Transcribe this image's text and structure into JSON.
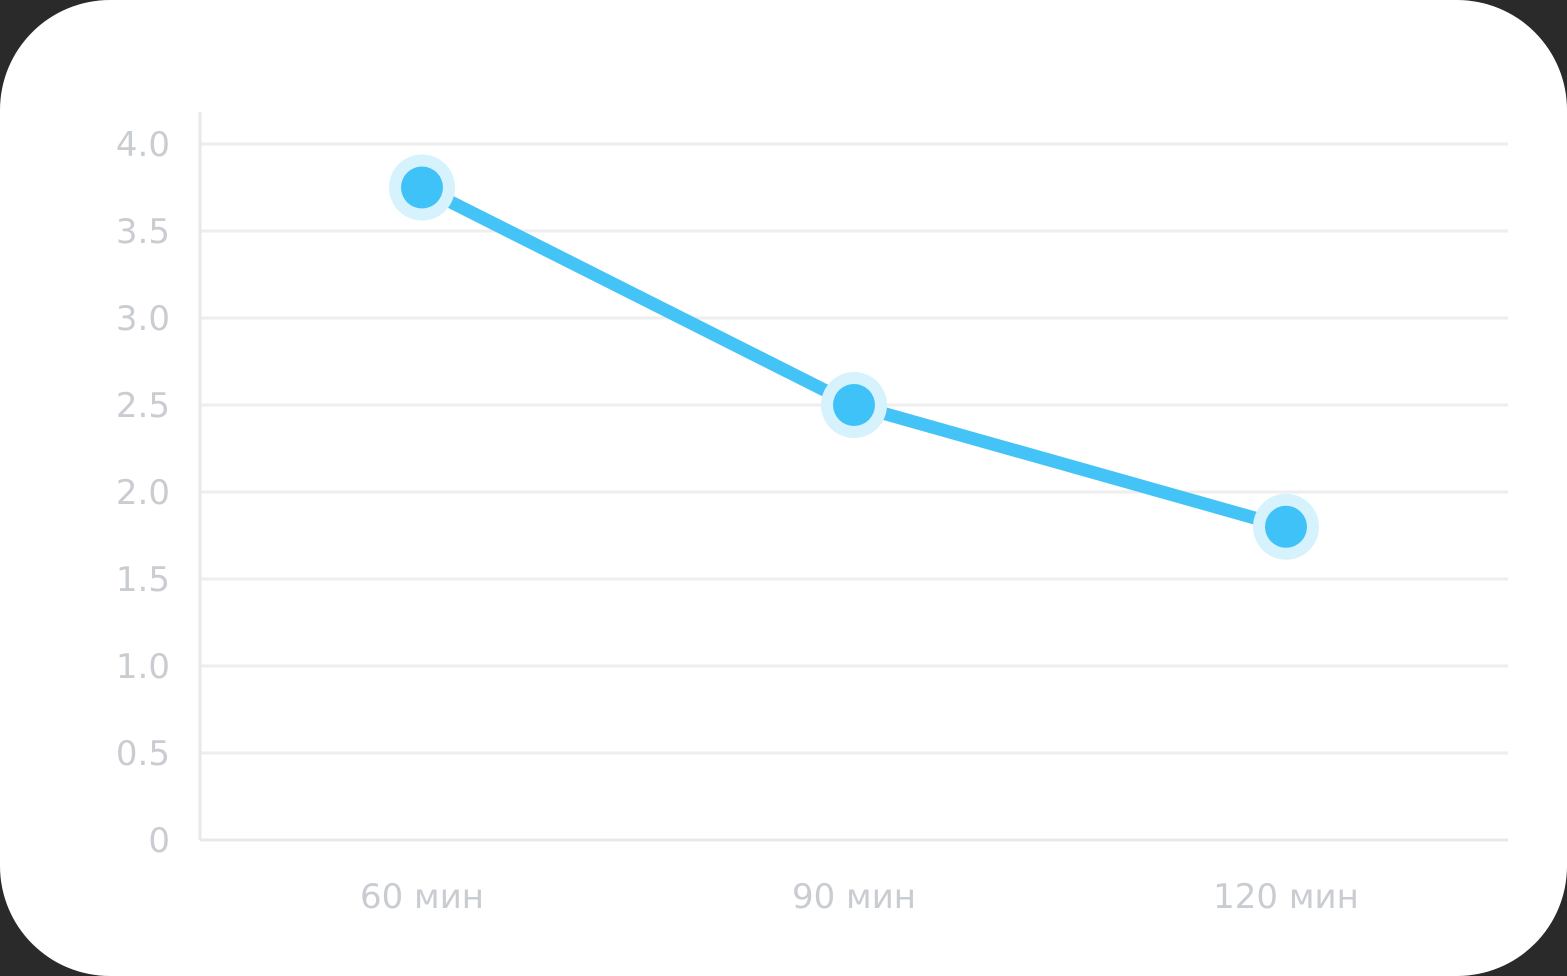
{
  "chart_data": {
    "type": "line",
    "categories": [
      "60 мин",
      "90 мин",
      "120 мин"
    ],
    "values": [
      3.75,
      2.5,
      1.8
    ],
    "ylim": [
      0,
      4.0
    ],
    "yticks": [
      "0",
      "0.5",
      "1.0",
      "1.5",
      "2.0",
      "2.5",
      "3.0",
      "3.5",
      "4.0"
    ],
    "ytick_values": [
      0,
      0.5,
      1.0,
      1.5,
      2.0,
      2.5,
      3.0,
      3.5,
      4.0
    ],
    "grid": true,
    "colors": {
      "line": "#44c4f6",
      "point": "#3fc2f7",
      "halo": "#d6f2fc",
      "grid": "#eeeeee",
      "axis": "#e8e8e8",
      "tick_text": "#c9ccd1"
    }
  }
}
